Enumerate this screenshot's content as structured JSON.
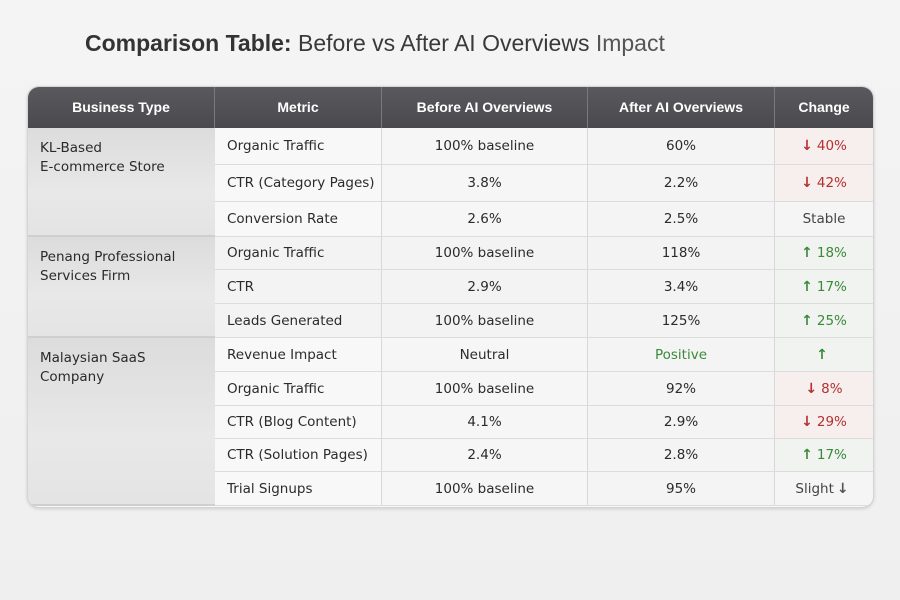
{
  "title": {
    "bold": "Comparison Table:",
    "middle": " Before vs After AI Overviews",
    "light": " Impact"
  },
  "colors": {
    "header_bg": "#4f4e53",
    "down": "#b53030",
    "up": "#3a8a3a",
    "neutral": "#444444"
  },
  "table": {
    "headers": [
      "Business Type",
      "Metric",
      "Before AI Overviews",
      "After AI Overviews",
      "Change"
    ],
    "groups": [
      {
        "business": "KL-Based\nE-commerce Store",
        "rows": [
          {
            "metric": "Organic Traffic",
            "before": "100% baseline",
            "after": "60%",
            "change_icon": "↓",
            "change": "40%",
            "trend": "down"
          },
          {
            "metric": "CTR (Category Pages)",
            "before": "3.8%",
            "after": "2.2%",
            "change_icon": "↓",
            "change": "42%",
            "trend": "down"
          },
          {
            "metric": "Conversion Rate",
            "before": "2.6%",
            "after": "2.5%",
            "change_icon": "",
            "change": "Stable",
            "trend": "neutral"
          }
        ]
      },
      {
        "business": "Penang Professional\nServices Firm",
        "rows": [
          {
            "metric": "Organic Traffic",
            "before": "100% baseline",
            "after": "118%",
            "change_icon": "↑",
            "change": "18%",
            "trend": "up"
          },
          {
            "metric": "CTR",
            "before": "2.9%",
            "after": "3.4%",
            "change_icon": "↑",
            "change": "17%",
            "trend": "up"
          },
          {
            "metric": "Leads Generated",
            "before": "100% baseline",
            "after": "125%",
            "change_icon": "↑",
            "change": "25%",
            "trend": "up"
          }
        ]
      },
      {
        "business": "Malaysian SaaS\nCompany",
        "rows": [
          {
            "metric": "Revenue Impact",
            "before": "Neutral",
            "after": "Positive",
            "change_icon": "↑",
            "change": "",
            "trend": "up"
          },
          {
            "metric": "Organic Traffic",
            "before": "100% baseline",
            "after": "92%",
            "change_icon": "↓",
            "change": "8%",
            "trend": "down"
          },
          {
            "metric": "CTR (Blog Content)",
            "before": "4.1%",
            "after": "2.9%",
            "change_icon": "↓",
            "change": "29%",
            "trend": "down"
          },
          {
            "metric": "CTR (Solution Pages)",
            "before": "2.4%",
            "after": "2.8%",
            "change_icon": "↑",
            "change": "17%",
            "trend": "up"
          },
          {
            "metric": "Trial Signups",
            "before": "100% baseline",
            "after": "95%",
            "change_icon": "↓",
            "change": "Slight",
            "trend": "neutral"
          }
        ]
      }
    ]
  }
}
